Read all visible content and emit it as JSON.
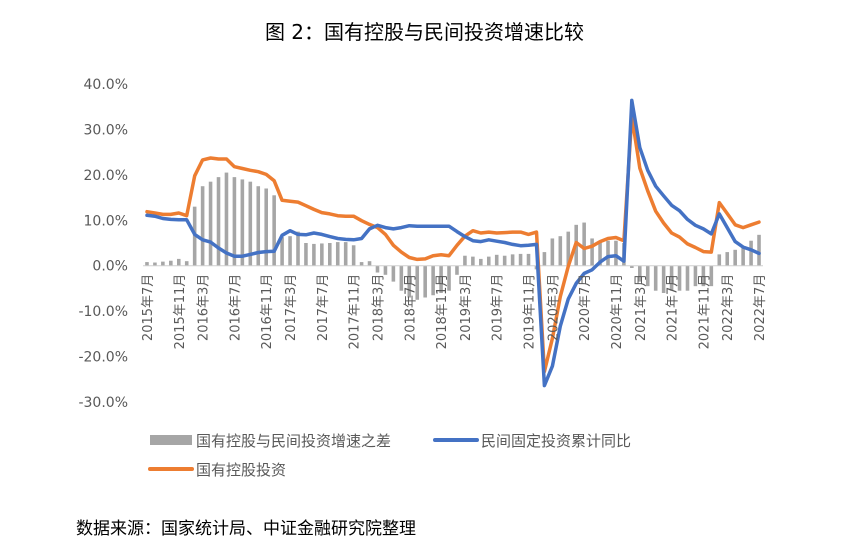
{
  "chart_data": {
    "type": "bar+line",
    "title": "图 2：国有控股与民间投资增速比较",
    "source": "数据来源：国家统计局、中证金融研究院整理",
    "y_axis": {
      "min": -30,
      "max": 40,
      "step": 10,
      "tick_labels": [
        "40.0%",
        "30.0%",
        "20.0%",
        "10.0%",
        "0.0%",
        "-10.0%",
        "-20.0%",
        "-30.0%"
      ]
    },
    "x_tick_labels": [
      "2015年7月",
      "2015年11月",
      "2016年3月",
      "2016年7月",
      "2016年11月",
      "2017年3月",
      "2017年7月",
      "2017年11月",
      "2018年3月",
      "2018年7月",
      "2018年11月",
      "2019年3月",
      "2019年7月",
      "2019年11月",
      "2020年3月",
      "2020年7月",
      "2020年11月",
      "2021年3月",
      "2021年7月",
      "2021年11月",
      "2022年3月",
      "2022年7月"
    ],
    "categories": [
      "2015年7月",
      "2015年8月",
      "2015年9月",
      "2015年10月",
      "2015年11月",
      "2015年12月",
      "2016年2月",
      "2016年3月",
      "2016年4月",
      "2016年5月",
      "2016年6月",
      "2016年7月",
      "2016年8月",
      "2016年9月",
      "2016年10月",
      "2016年11月",
      "2016年12月",
      "2017年2月",
      "2017年3月",
      "2017年4月",
      "2017年5月",
      "2017年6月",
      "2017年7月",
      "2017年8月",
      "2017年9月",
      "2017年10月",
      "2017年11月",
      "2017年12月",
      "2018年2月",
      "2018年3月",
      "2018年4月",
      "2018年5月",
      "2018年6月",
      "2018年7月",
      "2018年8月",
      "2018年9月",
      "2018年10月",
      "2018年11月",
      "2018年12月",
      "2019年2月",
      "2019年3月",
      "2019年4月",
      "2019年5月",
      "2019年6月",
      "2019年7月",
      "2019年8月",
      "2019年9月",
      "2019年10月",
      "2019年11月",
      "2019年12月",
      "2020年2月",
      "2020年3月",
      "2020年4月",
      "2020年5月",
      "2020年6月",
      "2020年7月",
      "2020年8月",
      "2020年9月",
      "2020年10月",
      "2020年11月",
      "2020年12月",
      "2021年2月",
      "2021年3月",
      "2021年4月",
      "2021年5月",
      "2021年6月",
      "2021年7月",
      "2021年8月",
      "2021年9月",
      "2021年10月",
      "2021年11月",
      "2021年12月",
      "2022年2月",
      "2022年3月",
      "2022年4月",
      "2022年5月",
      "2022年6月",
      "2022年7月"
    ],
    "series": [
      {
        "name": "国有控股与民间投资增速之差",
        "type": "bar",
        "color": "#a6a6a6",
        "values": [
          0.8,
          0.7,
          0.9,
          1.1,
          1.5,
          1.0,
          13.0,
          17.5,
          18.5,
          19.5,
          20.5,
          19.5,
          19.0,
          18.5,
          17.5,
          17.0,
          15.5,
          6.3,
          6.5,
          7.5,
          5.0,
          4.8,
          4.9,
          5.0,
          5.2,
          5.2,
          4.5,
          0.8,
          1.0,
          -1.5,
          -2.0,
          -3.5,
          -5.5,
          -7.0,
          -7.5,
          -7.0,
          -6.5,
          -6.0,
          -5.5,
          -2.0,
          2.2,
          2.0,
          1.5,
          2.0,
          2.4,
          2.2,
          2.5,
          2.6,
          2.6,
          -0.8,
          3.0,
          6.0,
          6.5,
          7.5,
          9.0,
          9.5,
          6.0,
          5.5,
          5.5,
          5.5,
          5.0,
          -0.5,
          -3.5,
          -4.5,
          -5.5,
          -6.0,
          -5.5,
          -5.5,
          -5.5,
          -4.5,
          -4.5,
          -4.5,
          2.5,
          3.0,
          3.5,
          4.0,
          5.5,
          6.8
        ]
      },
      {
        "name": "民间固定投资累计同比",
        "type": "line",
        "color": "#4472c4",
        "values": [
          11.1,
          10.9,
          10.4,
          10.2,
          10.1,
          10.1,
          6.9,
          5.7,
          5.2,
          3.9,
          2.8,
          2.1,
          2.1,
          2.5,
          2.9,
          3.1,
          3.2,
          6.7,
          7.7,
          6.9,
          6.8,
          7.2,
          6.9,
          6.4,
          6.0,
          5.8,
          5.7,
          6.0,
          8.1,
          8.9,
          8.4,
          8.1,
          8.4,
          8.8,
          8.7,
          8.7,
          8.7,
          8.7,
          8.7,
          7.5,
          6.4,
          5.5,
          5.3,
          5.7,
          5.4,
          5.1,
          4.7,
          4.4,
          4.5,
          4.7,
          -26.4,
          -22.1,
          -13.3,
          -7.3,
          -3.9,
          -1.7,
          -0.9,
          0.8,
          2.0,
          2.2,
          1.0,
          36.4,
          26.0,
          21.0,
          17.5,
          15.4,
          13.3,
          12.1,
          10.2,
          8.9,
          8.1,
          7.0,
          11.4,
          8.4,
          5.3,
          4.1,
          3.5,
          2.7
        ]
      },
      {
        "name": "国有控股投资",
        "type": "line",
        "color": "#ed7d31",
        "values": [
          11.9,
          11.6,
          11.3,
          11.3,
          11.6,
          11.0,
          19.8,
          23.3,
          23.7,
          23.5,
          23.5,
          21.8,
          21.4,
          21.0,
          20.7,
          20.1,
          18.7,
          14.4,
          14.2,
          14.0,
          13.2,
          12.4,
          11.7,
          11.4,
          11.0,
          10.9,
          10.9,
          9.9,
          9.1,
          8.4,
          6.9,
          4.5,
          3.0,
          1.8,
          1.4,
          1.5,
          2.2,
          2.4,
          2.2,
          4.5,
          6.5,
          7.7,
          7.2,
          7.4,
          7.2,
          7.3,
          7.4,
          7.4,
          6.9,
          7.4,
          -23.3,
          -16.0,
          -6.8,
          -0.1,
          5.1,
          3.8,
          4.3,
          5.3,
          6.0,
          6.2,
          5.5,
          32.9,
          21.5,
          16.5,
          12.0,
          9.4,
          7.2,
          6.3,
          4.8,
          4.0,
          3.1,
          3.0,
          13.9,
          11.5,
          9.0,
          8.4,
          9.0,
          9.6
        ]
      }
    ],
    "legend": [
      "国有控股与民间投资增速之差",
      "民间固定投资累计同比",
      "国有控股投资"
    ],
    "legend_position": "bottom-left",
    "grid": false
  }
}
